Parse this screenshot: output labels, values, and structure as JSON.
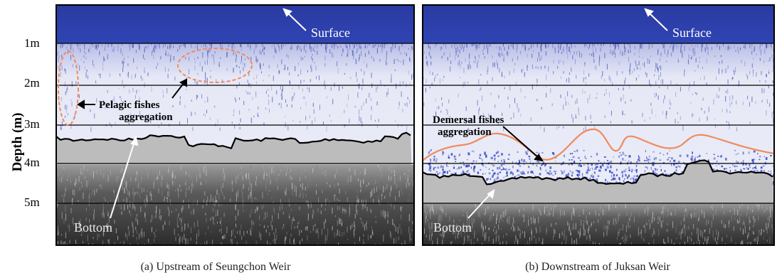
{
  "axis": {
    "ylabel": "Depth (m)",
    "ticks": [
      "1m",
      "2m",
      "3m",
      "4m",
      "5m"
    ]
  },
  "panels": [
    {
      "caption": "(a) Upstream of Seungchon Weir",
      "surface_label": "Surface",
      "bottom_label": "Bottom",
      "annotation": [
        "Pelagic fishes",
        "aggregation"
      ]
    },
    {
      "caption": "(b) Downstream of Juksan Weir",
      "surface_label": "Surface",
      "bottom_label": "Bottom",
      "annotation": [
        "Demersal fishes",
        "aggregation"
      ]
    }
  ],
  "colors": {
    "surface_band": "#2b3fa8",
    "water": "#e8eaf6",
    "water_noise": "#4050b8",
    "sediment": "#bdbdbd",
    "deep": "#3a3a3a",
    "annotation_outline": "#f08a5d",
    "bottom_line": "#000000"
  }
}
